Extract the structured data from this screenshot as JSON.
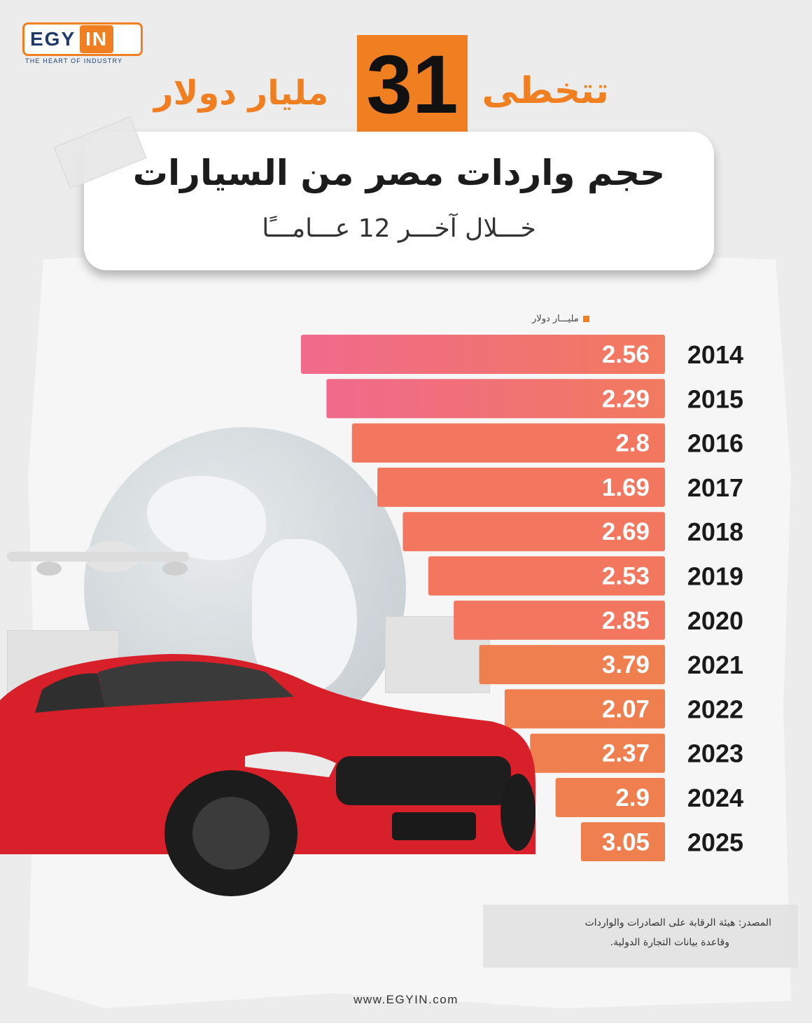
{
  "brand": {
    "logo_left": "EGY",
    "logo_right": "IN",
    "tagline": "THE HEART OF INDUSTRY",
    "website": "www.EGYIN.com",
    "accent_color": "#f07f22",
    "navy_color": "#1d3a6b"
  },
  "headline": {
    "right_text": "تتخطى",
    "number": "31",
    "left_text": "مليار دولار"
  },
  "card": {
    "title": "حجم واردات مصر من السيارات",
    "subtitle": "خـــلال آخـــر 12 عـــامـــًا"
  },
  "chart_data": {
    "type": "bar",
    "orientation": "horizontal",
    "unit_label": "مليـــار دولار",
    "categories": [
      "2014",
      "2015",
      "2016",
      "2017",
      "2018",
      "2019",
      "2020",
      "2021",
      "2022",
      "2023",
      "2024",
      "2025"
    ],
    "values": [
      2.56,
      2.29,
      2.8,
      1.69,
      2.69,
      2.53,
      2.85,
      3.79,
      2.07,
      2.37,
      2.9,
      3.05
    ],
    "value_labels": [
      "2.56",
      "2.29",
      "2.8",
      "1.69",
      "2.69",
      "2.53",
      "2.85",
      "3.79",
      "2.07",
      "2.37",
      "2.9",
      "3.05"
    ],
    "colors": {
      "top_gradient_start": "#f06a8c",
      "top_gradient_end": "#f27a5e",
      "bottom_color": "#f07f50"
    }
  },
  "source": {
    "line1": "المصدر: هيئة الرقابة على الصادرات والواردات",
    "line2": "وقاعدة بيانات التجارة الدولية."
  }
}
